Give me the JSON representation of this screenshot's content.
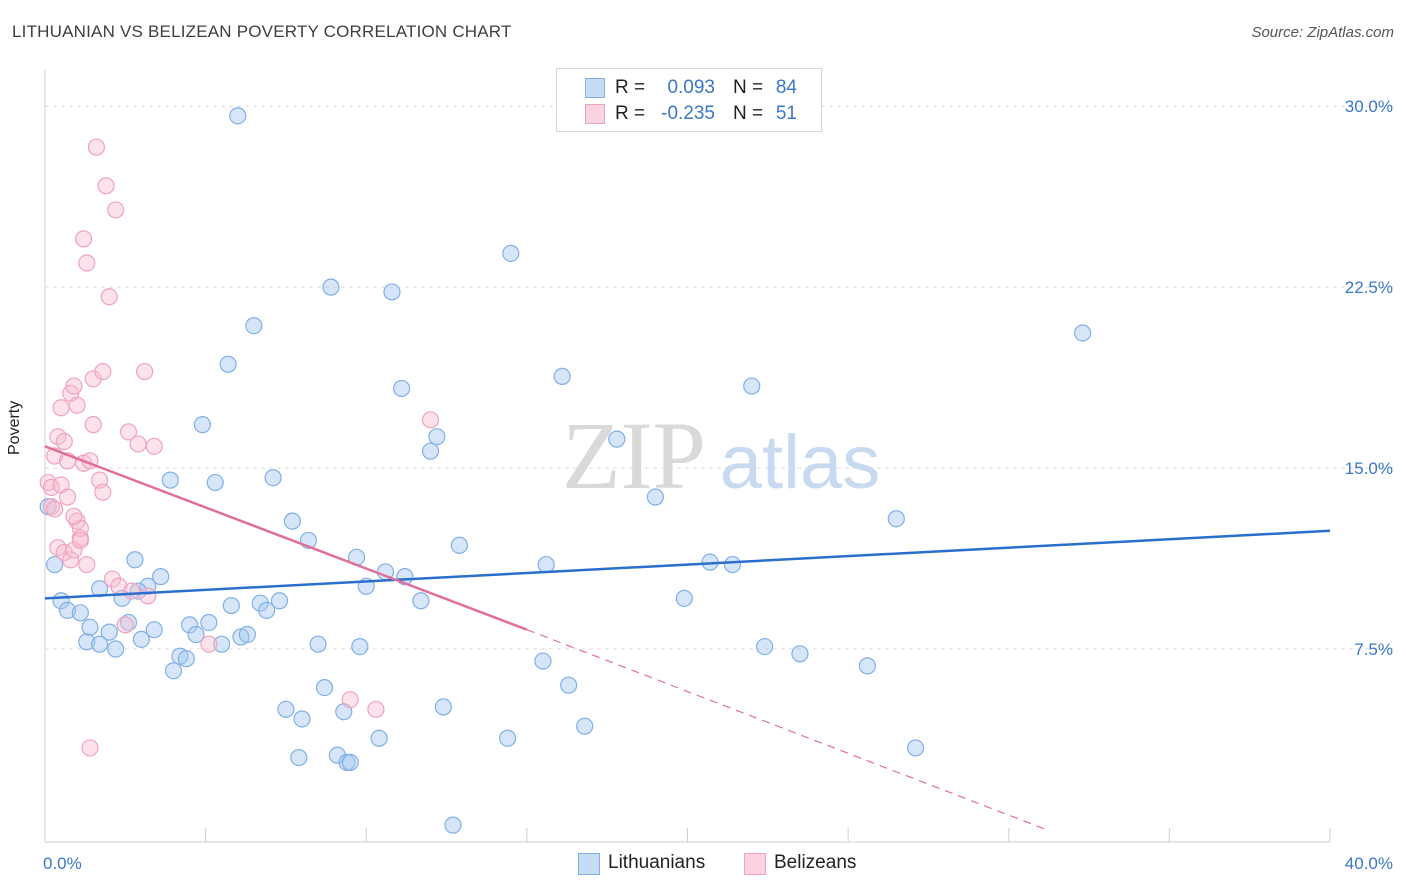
{
  "header": {
    "title": "LITHUANIAN VS BELIZEAN POVERTY CORRELATION CHART",
    "source": "Source: ZipAtlas.com"
  },
  "watermark": {
    "zip": "ZIP",
    "atlas": "atlas"
  },
  "stats": [
    {
      "r_label": "R =",
      "r_value": "0.093",
      "n_label": "N =",
      "n_value": "84"
    },
    {
      "r_label": "R =",
      "r_value": "-0.235",
      "n_label": "N =",
      "n_value": "51"
    }
  ],
  "legend": [
    {
      "label": "Lithuanians"
    },
    {
      "label": "Belizeans"
    }
  ],
  "chart_data": {
    "type": "scatter",
    "title": "LITHUANIAN VS BELIZEAN POVERTY CORRELATION CHART",
    "xlabel": "",
    "ylabel": "Poverty",
    "xlim": [
      0,
      40
    ],
    "ylim": [
      -0.5,
      31.5
    ],
    "x_tick_labels": [
      "0.0%",
      "40.0%"
    ],
    "y_ticks": [
      7.5,
      15.0,
      22.5,
      30.0
    ],
    "y_tick_labels": [
      "7.5%",
      "15.0%",
      "22.5%",
      "30.0%"
    ],
    "grid": true,
    "series": [
      {
        "name": "Lithuanians",
        "color": "#7fb0e8",
        "fill": "rgba(165,199,240,0.45)",
        "line_color": "#2b6fcc",
        "trend": {
          "x": [
            0,
            40
          ],
          "y": [
            9.6,
            12.4
          ],
          "dashed_to": null
        },
        "points": [
          [
            0.3,
            11.0
          ],
          [
            0.5,
            9.5
          ],
          [
            0.7,
            9.1
          ],
          [
            1.1,
            9.0
          ],
          [
            1.3,
            7.8
          ],
          [
            1.4,
            8.4
          ],
          [
            1.7,
            7.7
          ],
          [
            1.7,
            10.0
          ],
          [
            2.0,
            8.2
          ],
          [
            2.2,
            7.5
          ],
          [
            2.4,
            9.6
          ],
          [
            2.6,
            8.6
          ],
          [
            2.8,
            11.2
          ],
          [
            3.0,
            7.9
          ],
          [
            3.2,
            10.1
          ],
          [
            3.4,
            8.3
          ],
          [
            3.6,
            10.5
          ],
          [
            3.9,
            14.5
          ],
          [
            4.0,
            6.6
          ],
          [
            4.2,
            7.2
          ],
          [
            4.4,
            7.1
          ],
          [
            4.5,
            8.5
          ],
          [
            4.7,
            8.1
          ],
          [
            4.9,
            16.8
          ],
          [
            5.1,
            8.6
          ],
          [
            5.3,
            14.4
          ],
          [
            5.5,
            7.7
          ],
          [
            5.7,
            19.3
          ],
          [
            5.8,
            9.3
          ],
          [
            6.0,
            29.6
          ],
          [
            6.1,
            8.0
          ],
          [
            6.3,
            8.1
          ],
          [
            6.5,
            20.9
          ],
          [
            6.7,
            9.4
          ],
          [
            6.9,
            9.1
          ],
          [
            7.1,
            14.6
          ],
          [
            7.3,
            9.5
          ],
          [
            7.5,
            5.0
          ],
          [
            7.7,
            12.8
          ],
          [
            7.9,
            3.0
          ],
          [
            8.0,
            4.6
          ],
          [
            8.2,
            12.0
          ],
          [
            8.5,
            7.7
          ],
          [
            8.7,
            5.9
          ],
          [
            8.9,
            22.5
          ],
          [
            9.1,
            3.1
          ],
          [
            9.3,
            4.9
          ],
          [
            9.4,
            2.8
          ],
          [
            9.5,
            2.8
          ],
          [
            9.7,
            11.3
          ],
          [
            9.8,
            7.6
          ],
          [
            10.0,
            10.1
          ],
          [
            10.4,
            3.8
          ],
          [
            10.6,
            10.7
          ],
          [
            10.8,
            22.3
          ],
          [
            11.2,
            10.5
          ],
          [
            11.1,
            18.3
          ],
          [
            11.7,
            9.5
          ],
          [
            12.0,
            15.7
          ],
          [
            12.2,
            16.3
          ],
          [
            12.4,
            5.1
          ],
          [
            12.7,
            0.2
          ],
          [
            12.9,
            11.8
          ],
          [
            14.5,
            23.9
          ],
          [
            14.4,
            3.8
          ],
          [
            15.6,
            11.0
          ],
          [
            15.5,
            7.0
          ],
          [
            16.1,
            18.8
          ],
          [
            16.3,
            6.0
          ],
          [
            16.8,
            4.3
          ],
          [
            17.8,
            16.2
          ],
          [
            19.0,
            13.8
          ],
          [
            19.9,
            9.6
          ],
          [
            20.7,
            11.1
          ],
          [
            21.4,
            11.0
          ],
          [
            22.0,
            18.4
          ],
          [
            22.4,
            7.6
          ],
          [
            23.5,
            7.3
          ],
          [
            25.6,
            6.8
          ],
          [
            26.5,
            12.9
          ],
          [
            27.1,
            3.4
          ],
          [
            32.3,
            20.6
          ],
          [
            0.1,
            13.4
          ],
          [
            2.9,
            9.9
          ]
        ]
      },
      {
        "name": "Belizeans",
        "color": "#f0a3bc",
        "fill": "rgba(246,190,210,0.45)",
        "line_color": "#e0709a",
        "trend": {
          "x": [
            0,
            15.0
          ],
          "y": [
            15.9,
            8.3
          ],
          "dashed_to": [
            31.2,
            0.0
          ]
        },
        "points": [
          [
            0.1,
            14.4
          ],
          [
            0.2,
            13.4
          ],
          [
            0.2,
            14.2
          ],
          [
            0.3,
            15.5
          ],
          [
            0.4,
            11.7
          ],
          [
            0.4,
            16.3
          ],
          [
            0.5,
            14.3
          ],
          [
            0.5,
            17.5
          ],
          [
            0.6,
            11.5
          ],
          [
            0.6,
            16.1
          ],
          [
            0.7,
            13.8
          ],
          [
            0.7,
            15.3
          ],
          [
            0.8,
            11.2
          ],
          [
            0.8,
            18.1
          ],
          [
            0.9,
            11.6
          ],
          [
            0.9,
            18.4
          ],
          [
            1.0,
            17.6
          ],
          [
            1.0,
            12.8
          ],
          [
            1.1,
            12.1
          ],
          [
            1.1,
            12.5
          ],
          [
            1.2,
            24.5
          ],
          [
            1.2,
            15.2
          ],
          [
            1.3,
            23.5
          ],
          [
            1.3,
            11.0
          ],
          [
            1.4,
            15.3
          ],
          [
            1.5,
            18.7
          ],
          [
            1.5,
            16.8
          ],
          [
            1.6,
            28.3
          ],
          [
            1.7,
            14.5
          ],
          [
            1.8,
            14.0
          ],
          [
            1.8,
            19.0
          ],
          [
            1.9,
            26.7
          ],
          [
            2.0,
            22.1
          ],
          [
            2.1,
            10.4
          ],
          [
            2.2,
            25.7
          ],
          [
            2.3,
            10.1
          ],
          [
            2.5,
            8.5
          ],
          [
            2.6,
            16.5
          ],
          [
            2.9,
            16.0
          ],
          [
            3.1,
            19.0
          ],
          [
            3.2,
            9.7
          ],
          [
            3.4,
            15.9
          ],
          [
            5.1,
            7.7
          ],
          [
            9.5,
            5.4
          ],
          [
            10.3,
            5.0
          ],
          [
            12.0,
            17.0
          ],
          [
            1.4,
            3.4
          ],
          [
            0.3,
            13.3
          ],
          [
            0.9,
            13.0
          ],
          [
            2.7,
            9.9
          ],
          [
            1.1,
            12.0
          ]
        ]
      }
    ]
  }
}
